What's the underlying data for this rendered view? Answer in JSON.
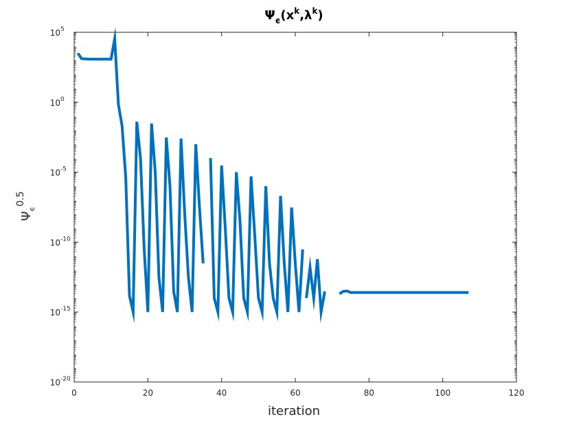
{
  "chart_data": {
    "type": "line",
    "title": {
      "main": "Ψ",
      "main_sub": "ϵ",
      "args_open": "(x",
      "args_sup1": "k",
      "args_mid": ",λ",
      "args_sup2": "k",
      "args_close": ")"
    },
    "xlabel": "iteration",
    "ylabel": {
      "main": "Ψ",
      "sub": "ϵ",
      "sup": "0.5"
    },
    "x_ticks": [
      "0",
      "20",
      "40",
      "60",
      "80",
      "100",
      "120"
    ],
    "y_ticks": [
      {
        "base": "10",
        "exp": "-20"
      },
      {
        "base": "10",
        "exp": "-15"
      },
      {
        "base": "10",
        "exp": "-10"
      },
      {
        "base": "10",
        "exp": "-5"
      },
      {
        "base": "10",
        "exp": "0"
      },
      {
        "base": "10",
        "exp": "5"
      }
    ],
    "xlim": [
      0,
      120
    ],
    "ylim": [
      1e-20,
      100000.0
    ],
    "yscale": "log",
    "grid": false,
    "color": "#0072bd",
    "series": [
      {
        "segments": [
          [
            [
              1,
              3200.0
            ],
            [
              2,
              1300.0
            ],
            [
              3,
              1250.0
            ],
            [
              4,
              1200.0
            ],
            [
              5,
              1200.0
            ],
            [
              6,
              1200.0
            ],
            [
              7,
              1200.0
            ],
            [
              8,
              1200.0
            ],
            [
              9,
              1200.0
            ],
            [
              10,
              1200.0
            ],
            [
              11,
              35000.0
            ],
            [
              12,
              0.7
            ],
            [
              13,
              0.02
            ],
            [
              14,
              4e-06
            ],
            [
              15,
              1.5e-14
            ],
            [
              16,
              1e-15
            ],
            [
              17,
              0.04
            ],
            [
              18,
              0.0001
            ],
            [
              19,
              3e-11
            ],
            [
              20,
              1e-15
            ],
            [
              21,
              0.03
            ],
            [
              22,
              1e-05
            ],
            [
              23,
              3e-13
            ],
            [
              24,
              1e-15
            ],
            [
              25,
              0.003
            ],
            [
              26,
              1e-06
            ],
            [
              27,
              3e-14
            ],
            [
              28,
              1e-15
            ],
            [
              29,
              0.0025
            ],
            [
              30,
              1e-08
            ],
            [
              31,
              3e-13
            ],
            [
              32,
              1e-15
            ],
            [
              33,
              0.001
            ],
            [
              34,
              3e-08
            ],
            [
              35,
              3e-12
            ]
          ],
          [
            [
              37,
              0.0001
            ],
            [
              38,
              1e-14
            ],
            [
              39,
              1e-15
            ],
            [
              40,
              3e-05
            ],
            [
              41,
              1e-09
            ],
            [
              42,
              1e-14
            ],
            [
              43,
              1e-15
            ],
            [
              44,
              1e-05
            ],
            [
              45,
              3e-09
            ],
            [
              46,
              1e-14
            ],
            [
              47,
              1e-15
            ],
            [
              48,
              5e-06
            ],
            [
              49,
              3e-10
            ],
            [
              50,
              1e-14
            ],
            [
              51,
              1e-15
            ],
            [
              52,
              1e-06
            ],
            [
              53,
              3e-12
            ],
            [
              54,
              1e-14
            ],
            [
              55,
              1e-15
            ],
            [
              56,
              2e-07
            ],
            [
              57,
              3e-12
            ],
            [
              58,
              1e-15
            ],
            [
              59,
              3e-08
            ],
            [
              60,
              3e-12
            ],
            [
              61,
              1e-15
            ],
            [
              62,
              3e-11
            ]
          ],
          [
            [
              63,
              1e-14
            ],
            [
              64,
              1.5e-12
            ],
            [
              65,
              1e-14
            ],
            [
              66,
              6e-12
            ],
            [
              67,
              1e-15
            ],
            [
              68,
              3e-14
            ]
          ],
          [
            [
              72,
              2e-14
            ],
            [
              73,
              3e-14
            ],
            [
              74,
              3.2e-14
            ],
            [
              75,
              2.5e-14
            ],
            [
              76,
              2.5e-14
            ],
            [
              107,
              2.5e-14
            ]
          ]
        ]
      }
    ]
  }
}
